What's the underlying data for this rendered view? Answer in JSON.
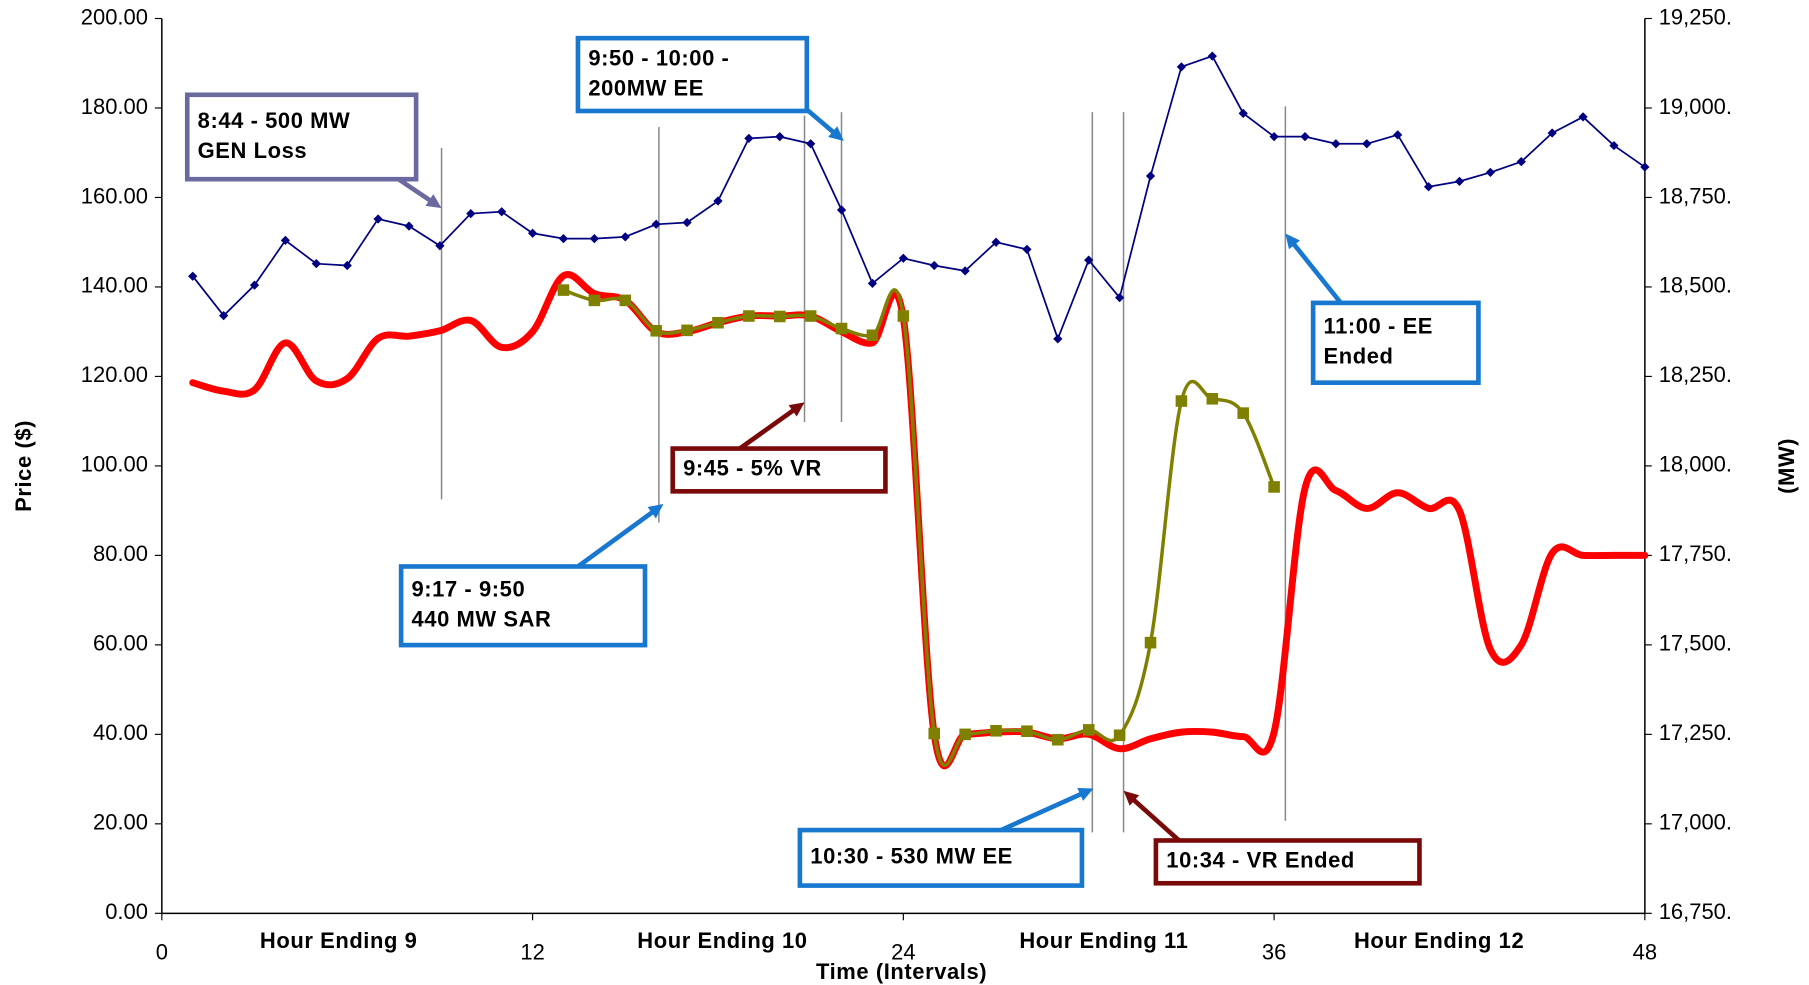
{
  "chart_data": {
    "type": "line",
    "xlabel": "Time (Intervals)",
    "ylabel": "Price ($)",
    "y2label": "(MW)",
    "xlim": [
      0,
      48
    ],
    "xticks": [
      0,
      12,
      24,
      36,
      48
    ],
    "ylim": [
      0,
      200
    ],
    "yticks": [
      {
        "value": 0,
        "label": "0.00"
      },
      {
        "value": 20,
        "label": "20.00"
      },
      {
        "value": 40,
        "label": "40.00"
      },
      {
        "value": 60,
        "label": "60.00"
      },
      {
        "value": 80,
        "label": "80.00"
      },
      {
        "value": 100,
        "label": "100.00"
      },
      {
        "value": 120,
        "label": "120.00"
      },
      {
        "value": 140,
        "label": "140.00"
      },
      {
        "value": 160,
        "label": "160.00"
      },
      {
        "value": 180,
        "label": "180.00"
      },
      {
        "value": 200,
        "label": "200.00"
      }
    ],
    "y2lim": [
      16750,
      19250
    ],
    "y2ticks": [
      {
        "value": 16750,
        "label": "16,750."
      },
      {
        "value": 17000,
        "label": "17,000."
      },
      {
        "value": 17250,
        "label": "17,250."
      },
      {
        "value": 17500,
        "label": "17,500."
      },
      {
        "value": 17750,
        "label": "17,750."
      },
      {
        "value": 18000,
        "label": "18,000."
      },
      {
        "value": 18250,
        "label": "18,250."
      },
      {
        "value": 18500,
        "label": "18,500."
      },
      {
        "value": 18750,
        "label": "18,750."
      },
      {
        "value": 19000,
        "label": "19,000."
      },
      {
        "value": 19250,
        "label": "19,250."
      }
    ],
    "grid": false,
    "hour_labels": [
      "Hour Ending 9",
      "Hour Ending 10",
      "Hour Ending 11",
      "Hour Ending 12"
    ],
    "series": [
      {
        "color": "#000080",
        "axis": "y2",
        "smooth": false,
        "marker": "diamond",
        "x": [
          1,
          2,
          3,
          4,
          5,
          6,
          7,
          8,
          9,
          10,
          11,
          12,
          13,
          14,
          15,
          16,
          17,
          18,
          19,
          20,
          21,
          22,
          23,
          24,
          25,
          26,
          27,
          28,
          29,
          30,
          31,
          32,
          33,
          34,
          35,
          36,
          37,
          38,
          39,
          40,
          41,
          42,
          43,
          44,
          45,
          46,
          47,
          48
        ],
        "values": [
          18530,
          18420,
          18505,
          18630,
          18565,
          18560,
          18690,
          18670,
          18615,
          18705,
          18710,
          18650,
          18635,
          18635,
          18640,
          18675,
          18680,
          18740,
          18915,
          18920,
          18900,
          18715,
          18510,
          18580,
          18560,
          18545,
          18625,
          18605,
          18355,
          18575,
          18470,
          18810,
          19115,
          19145,
          18985,
          18920,
          18920,
          18900,
          18900,
          18925,
          18780,
          18795,
          18820,
          18850,
          18930,
          18975,
          18895,
          18835
        ]
      },
      {
        "color": "#ff0000",
        "axis": "y",
        "smooth": true,
        "marker": "none",
        "x": [
          1,
          2,
          3,
          4,
          5,
          6,
          7,
          8,
          9,
          10,
          11,
          12,
          13,
          14,
          15,
          16,
          17,
          18,
          19,
          20,
          21,
          22,
          23,
          24,
          25,
          26,
          27,
          28,
          29,
          30,
          31,
          32,
          33,
          34,
          35,
          36,
          37,
          38,
          39,
          40,
          41,
          42,
          43,
          44,
          45,
          46,
          47,
          48
        ],
        "values": [
          118.6,
          116.7,
          117,
          127.5,
          119,
          119.5,
          128.5,
          129,
          130.2,
          132.5,
          126.5,
          130,
          142.5,
          138.5,
          137,
          130,
          130,
          132,
          133.5,
          133.5,
          133.5,
          130,
          127.5,
          133,
          40,
          40,
          40.5,
          40.5,
          39,
          40,
          36.8,
          39,
          40.5,
          40.5,
          39.5,
          40.5,
          95,
          94.5,
          90.5,
          94,
          90.5,
          90,
          59,
          60,
          80.5,
          80,
          80,
          80
        ]
      },
      {
        "color": "#808000",
        "axis": "y",
        "smooth": true,
        "marker": "square",
        "x": [
          13,
          14,
          15,
          16,
          17,
          18,
          19,
          20,
          21,
          22,
          23,
          24,
          25,
          26,
          27,
          28,
          29,
          30,
          31,
          32,
          33,
          34,
          35,
          36
        ],
        "values": [
          139.3,
          137,
          137,
          130.2,
          130.3,
          132,
          133.5,
          133.4,
          133.5,
          130.7,
          129.2,
          133.5,
          40.2,
          40,
          40.8,
          40.7,
          38.8,
          41,
          39.8,
          60.5,
          114.5,
          115,
          111.8,
          95.3
        ]
      }
    ],
    "annotations": [
      {
        "lines": [
          "8:44 - 500 MW",
          "GEN Loss"
        ]
      },
      {
        "lines": [
          "9:50 - 10:00 -",
          "200MW  EE"
        ]
      },
      {
        "lines": [
          "9:17 - 9:50",
          "440 MW SAR"
        ]
      },
      {
        "lines": [
          "9:45 - 5% VR"
        ]
      },
      {
        "lines": [
          "11:00 - EE",
          "Ended"
        ]
      },
      {
        "lines": [
          "10:30 - 530 MW EE"
        ]
      },
      {
        "lines": [
          "10:34 - VR Ended"
        ]
      }
    ]
  }
}
